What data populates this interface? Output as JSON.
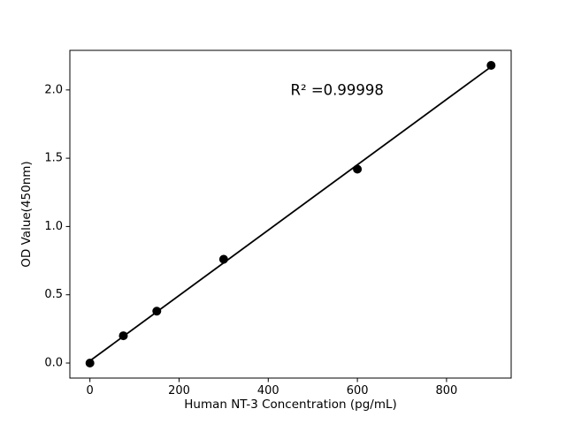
{
  "chart_data": {
    "type": "scatter",
    "title": "",
    "xlabel": "Human NT-3 Concentration (pg/mL)",
    "ylabel": "OD Value(450nm)",
    "points": {
      "x": [
        0,
        75,
        150,
        300,
        600,
        900
      ],
      "y": [
        0.0,
        0.2,
        0.38,
        0.76,
        1.42,
        2.18
      ]
    },
    "fit_line": {
      "x": [
        0,
        900
      ],
      "y": [
        0.016,
        2.17
      ]
    },
    "annotation": {
      "text": "R² =0.99998",
      "x": 450,
      "y": 2.0
    },
    "xlim": [
      -45,
      945
    ],
    "ylim": [
      -0.11,
      2.29
    ],
    "xticks": [
      "0",
      "200",
      "400",
      "600",
      "800"
    ],
    "yticks": [
      "0.0",
      "0.5",
      "1.0",
      "1.5",
      "2.0"
    ],
    "grid": false,
    "legend": null,
    "marker_size_px": 5,
    "colors": {
      "marker": "#000000",
      "line": "#000000",
      "text": "#000000",
      "spine": "#000000",
      "background": "#ffffff"
    }
  }
}
